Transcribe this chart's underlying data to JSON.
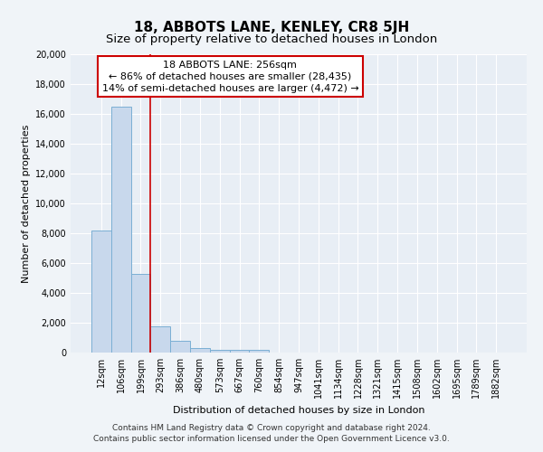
{
  "title": "18, ABBOTS LANE, KENLEY, CR8 5JH",
  "subtitle": "Size of property relative to detached houses in London",
  "xlabel": "Distribution of detached houses by size in London",
  "ylabel": "Number of detached properties",
  "categories": [
    "12sqm",
    "106sqm",
    "199sqm",
    "293sqm",
    "386sqm",
    "480sqm",
    "573sqm",
    "667sqm",
    "760sqm",
    "854sqm",
    "947sqm",
    "1041sqm",
    "1134sqm",
    "1228sqm",
    "1321sqm",
    "1415sqm",
    "1508sqm",
    "1602sqm",
    "1695sqm",
    "1789sqm",
    "1882sqm"
  ],
  "values": [
    8200,
    16500,
    5300,
    1750,
    800,
    300,
    200,
    200,
    200,
    0,
    0,
    0,
    0,
    0,
    0,
    0,
    0,
    0,
    0,
    0,
    0
  ],
  "bar_color": "#c8d8ec",
  "bar_edge_color": "#7bafd4",
  "vline_color": "#cc0000",
  "annotation_text": "18 ABBOTS LANE: 256sqm\n← 86% of detached houses are smaller (28,435)\n14% of semi-detached houses are larger (4,472) →",
  "annotation_box_color": "#ffffff",
  "annotation_box_edge_color": "#cc0000",
  "ylim": [
    0,
    20000
  ],
  "yticks": [
    0,
    2000,
    4000,
    6000,
    8000,
    10000,
    12000,
    14000,
    16000,
    18000,
    20000
  ],
  "footnote1": "Contains HM Land Registry data © Crown copyright and database right 2024.",
  "footnote2": "Contains public sector information licensed under the Open Government Licence v3.0.",
  "background_color": "#f0f4f8",
  "plot_bg_color": "#e8eef5",
  "title_fontsize": 11,
  "subtitle_fontsize": 9.5,
  "label_fontsize": 8,
  "tick_fontsize": 7,
  "annotation_fontsize": 8,
  "footnote_fontsize": 6.5
}
